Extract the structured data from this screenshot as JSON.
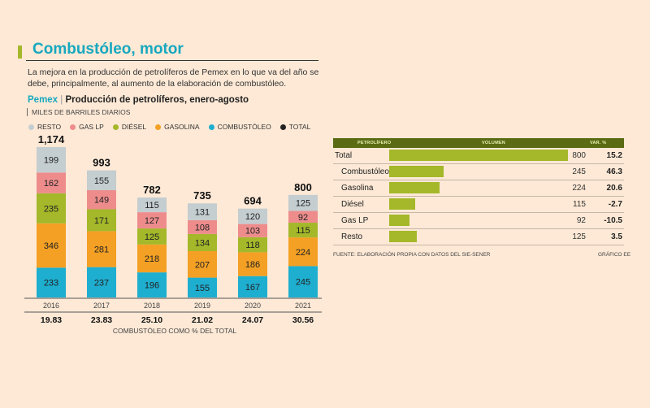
{
  "header": {
    "title": "Combustóleo, motor",
    "subtitle": "La mejora en la producción de petrolíferos de Pemex en lo que va del año se debe, principalmente, al aumento de la elaboración de combustóleo."
  },
  "chart_heading": {
    "brand": "Pemex",
    "separator": "|",
    "title": "Producción de petrolíferos, enero-agosto",
    "units": "MILES DE BARRILES DIARIOS"
  },
  "legend": [
    {
      "label": "RESTO",
      "color": "#c4cdd0"
    },
    {
      "label": "GAS LP",
      "color": "#ee8c8c"
    },
    {
      "label": "DIÉSEL",
      "color": "#a4b82a"
    },
    {
      "label": "GASOLINA",
      "color": "#f4a024"
    },
    {
      "label": "COMBUSTÓLEO",
      "color": "#1eaed0"
    },
    {
      "label": "TOTAL",
      "color": "#222222"
    }
  ],
  "chart_data": {
    "type": "bar",
    "stacked": true,
    "title": "Producción de petrolíferos, enero-agosto",
    "ylabel": "MILES DE BARRILES DIARIOS",
    "categories": [
      "2016",
      "2017",
      "2018",
      "2019",
      "2020",
      "2021"
    ],
    "series": [
      {
        "name": "COMBUSTÓLEO",
        "color": "#1eaed0",
        "values": [
          233,
          237,
          196,
          155,
          167,
          245
        ]
      },
      {
        "name": "GASOLINA",
        "color": "#f4a024",
        "values": [
          346,
          281,
          218,
          207,
          186,
          224
        ]
      },
      {
        "name": "DIÉSEL",
        "color": "#a4b82a",
        "values": [
          235,
          171,
          125,
          134,
          118,
          115
        ]
      },
      {
        "name": "GAS LP",
        "color": "#ee8c8c",
        "values": [
          162,
          149,
          127,
          108,
          103,
          92
        ]
      },
      {
        "name": "RESTO",
        "color": "#c4cdd0",
        "values": [
          199,
          155,
          115,
          131,
          120,
          125
        ]
      }
    ],
    "totals": [
      "1,174",
      "993",
      "782",
      "735",
      "694",
      "800"
    ],
    "share_values": [
      "19.83",
      "23.83",
      "25.10",
      "21.02",
      "24.07",
      "30.56"
    ],
    "share_label": "COMBUSTÓLEO COMO % DEL TOTAL",
    "ylim": [
      0,
      1200
    ]
  },
  "table": {
    "headers": {
      "product": "PETROLÍFERO",
      "volume": "VOLUMEN",
      "change": "VAR. %"
    },
    "max_volume": 800,
    "rows": [
      {
        "name": "Total",
        "volume": 800,
        "volume_label": "800",
        "change": "15.2"
      },
      {
        "name": "Combustóleo",
        "volume": 245,
        "volume_label": "245",
        "change": "46.3"
      },
      {
        "name": "Gasolina",
        "volume": 224,
        "volume_label": "224",
        "change": "20.6"
      },
      {
        "name": "Diésel",
        "volume": 115,
        "volume_label": "115",
        "change": "-2.7"
      },
      {
        "name": "Gas LP",
        "volume": 92,
        "volume_label": "92",
        "change": "-10.5"
      },
      {
        "name": "Resto",
        "volume": 125,
        "volume_label": "125",
        "change": "3.5"
      }
    ],
    "bar_color": "#a4b82a"
  },
  "footer": {
    "source": "FUENTE: ELABORACIÓN PROPIA CON DATOS DEL SIE-SENER",
    "credit": "GRÁFICO EE"
  },
  "colors": {
    "accent": "#17a8bf",
    "background": "#fde9d6",
    "table_header": "#5a6b13"
  }
}
